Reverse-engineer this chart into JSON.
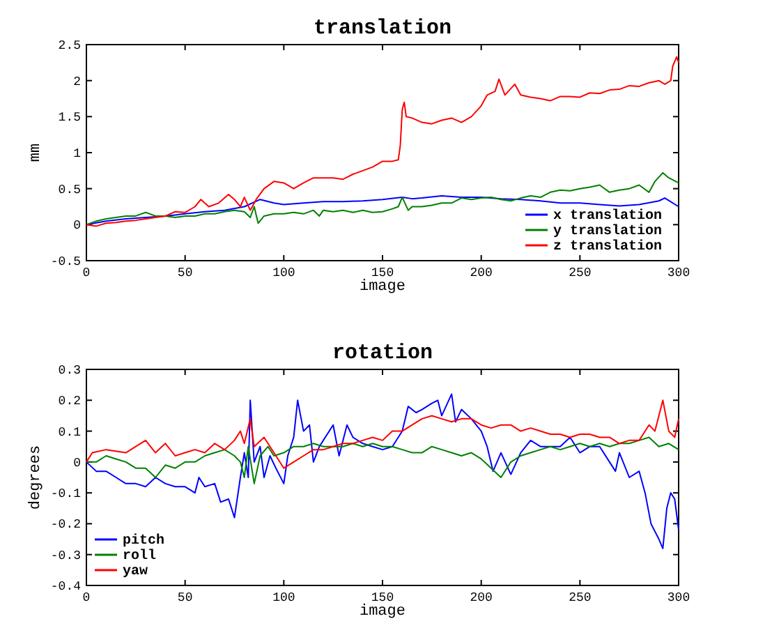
{
  "chart_data": [
    {
      "type": "line",
      "title": "translation",
      "xlabel": "image",
      "ylabel": "mm",
      "xlim": [
        0,
        300
      ],
      "xticks": [
        0,
        50,
        100,
        150,
        200,
        250,
        300
      ],
      "ylim": [
        -0.5,
        2.5
      ],
      "yticks": [
        -0.5,
        0,
        0.5,
        1,
        1.5,
        2,
        2.5
      ],
      "grid": false,
      "legend": "bottom right",
      "series": [
        {
          "name": "x translation",
          "color": "#0000ff",
          "x": [
            0,
            10,
            20,
            30,
            40,
            50,
            60,
            70,
            80,
            88,
            95,
            100,
            110,
            120,
            130,
            140,
            150,
            160,
            165,
            170,
            180,
            190,
            200,
            210,
            220,
            230,
            240,
            250,
            260,
            270,
            280,
            290,
            293,
            300
          ],
          "values": [
            0,
            0.05,
            0.08,
            0.1,
            0.12,
            0.15,
            0.18,
            0.2,
            0.25,
            0.35,
            0.3,
            0.28,
            0.3,
            0.32,
            0.32,
            0.33,
            0.35,
            0.38,
            0.36,
            0.37,
            0.4,
            0.38,
            0.38,
            0.36,
            0.35,
            0.33,
            0.3,
            0.3,
            0.28,
            0.26,
            0.28,
            0.33,
            0.37,
            0.25
          ]
        },
        {
          "name": "y translation",
          "color": "#008000",
          "x": [
            0,
            5,
            10,
            15,
            20,
            25,
            30,
            35,
            40,
            45,
            50,
            55,
            60,
            65,
            70,
            75,
            80,
            83,
            85,
            87,
            90,
            95,
            100,
            105,
            110,
            115,
            118,
            120,
            125,
            130,
            135,
            140,
            145,
            150,
            155,
            158,
            160,
            163,
            165,
            170,
            175,
            180,
            185,
            190,
            195,
            200,
            205,
            210,
            215,
            220,
            225,
            230,
            235,
            240,
            245,
            250,
            255,
            260,
            265,
            270,
            275,
            280,
            285,
            288,
            292,
            295,
            300
          ],
          "values": [
            0,
            0.05,
            0.08,
            0.1,
            0.12,
            0.12,
            0.17,
            0.12,
            0.12,
            0.1,
            0.12,
            0.12,
            0.15,
            0.15,
            0.18,
            0.2,
            0.18,
            0.1,
            0.25,
            0.02,
            0.12,
            0.15,
            0.15,
            0.17,
            0.15,
            0.2,
            0.12,
            0.2,
            0.18,
            0.2,
            0.17,
            0.2,
            0.17,
            0.18,
            0.22,
            0.25,
            0.38,
            0.2,
            0.25,
            0.25,
            0.27,
            0.3,
            0.3,
            0.37,
            0.35,
            0.37,
            0.38,
            0.35,
            0.33,
            0.37,
            0.4,
            0.38,
            0.45,
            0.48,
            0.47,
            0.5,
            0.52,
            0.55,
            0.45,
            0.48,
            0.5,
            0.55,
            0.45,
            0.6,
            0.72,
            0.65,
            0.58
          ]
        },
        {
          "name": "z translation",
          "color": "#ff0000",
          "x": [
            0,
            5,
            10,
            15,
            20,
            25,
            30,
            35,
            40,
            45,
            50,
            55,
            58,
            62,
            67,
            72,
            75,
            78,
            80,
            83,
            86,
            90,
            95,
            100,
            105,
            110,
            115,
            120,
            125,
            130,
            135,
            140,
            145,
            150,
            155,
            158,
            159,
            160,
            161,
            162,
            165,
            170,
            175,
            180,
            185,
            190,
            195,
            200,
            203,
            207,
            209,
            212,
            217,
            220,
            225,
            230,
            235,
            240,
            245,
            250,
            255,
            260,
            265,
            270,
            275,
            280,
            285,
            290,
            293,
            296,
            297,
            299,
            300
          ],
          "values": [
            0,
            -0.02,
            0.02,
            0.03,
            0.05,
            0.06,
            0.08,
            0.1,
            0.12,
            0.18,
            0.17,
            0.25,
            0.35,
            0.25,
            0.3,
            0.42,
            0.35,
            0.25,
            0.38,
            0.2,
            0.35,
            0.5,
            0.6,
            0.58,
            0.5,
            0.58,
            0.65,
            0.65,
            0.65,
            0.63,
            0.7,
            0.75,
            0.8,
            0.88,
            0.88,
            0.9,
            1.1,
            1.6,
            1.7,
            1.5,
            1.48,
            1.42,
            1.4,
            1.45,
            1.48,
            1.42,
            1.5,
            1.65,
            1.8,
            1.85,
            2.02,
            1.8,
            1.95,
            1.8,
            1.77,
            1.75,
            1.72,
            1.78,
            1.78,
            1.77,
            1.83,
            1.82,
            1.87,
            1.88,
            1.93,
            1.92,
            1.97,
            2,
            1.95,
            2,
            2.2,
            2.33,
            2.25
          ]
        }
      ]
    },
    {
      "type": "line",
      "title": "rotation",
      "xlabel": "image",
      "ylabel": "degrees",
      "xlim": [
        0,
        300
      ],
      "xticks": [
        0,
        50,
        100,
        150,
        200,
        250,
        300
      ],
      "ylim": [
        -0.4,
        0.3
      ],
      "yticks": [
        -0.4,
        -0.3,
        -0.2,
        -0.1,
        0,
        0.1,
        0.2,
        0.3
      ],
      "grid": false,
      "legend": "bottom left",
      "series": [
        {
          "name": "pitch",
          "color": "#0000ff",
          "x": [
            0,
            5,
            10,
            15,
            20,
            25,
            30,
            35,
            40,
            45,
            50,
            55,
            57,
            60,
            65,
            68,
            72,
            75,
            78,
            80,
            82,
            83,
            85,
            88,
            90,
            93,
            96,
            100,
            102,
            105,
            107,
            110,
            113,
            115,
            118,
            120,
            125,
            128,
            132,
            135,
            140,
            145,
            150,
            155,
            160,
            163,
            167,
            170,
            175,
            178,
            180,
            185,
            187,
            190,
            195,
            200,
            203,
            206,
            210,
            215,
            220,
            225,
            230,
            235,
            240,
            245,
            250,
            255,
            260,
            265,
            268,
            270,
            275,
            280,
            283,
            286,
            290,
            292,
            294,
            296,
            298,
            300
          ],
          "values": [
            0,
            -0.03,
            -0.03,
            -0.05,
            -0.07,
            -0.07,
            -0.08,
            -0.05,
            -0.07,
            -0.08,
            -0.08,
            -0.1,
            -0.05,
            -0.08,
            -0.07,
            -0.13,
            -0.12,
            -0.18,
            -0.05,
            0.03,
            -0.05,
            0.2,
            0,
            0.05,
            -0.05,
            0.02,
            -0.02,
            -0.07,
            0.02,
            0.08,
            0.2,
            0.1,
            0.12,
            0,
            0.05,
            0.07,
            0.12,
            0.02,
            0.12,
            0.08,
            0.06,
            0.05,
            0.04,
            0.05,
            0.1,
            0.18,
            0.16,
            0.17,
            0.19,
            0.2,
            0.15,
            0.22,
            0.13,
            0.17,
            0.14,
            0.1,
            0.05,
            -0.03,
            0.03,
            -0.04,
            0.03,
            0.07,
            0.05,
            0.05,
            0.05,
            0.08,
            0.03,
            0.05,
            0.05,
            0,
            -0.03,
            0.03,
            -0.05,
            -0.03,
            -0.1,
            -0.2,
            -0.25,
            -0.28,
            -0.15,
            -0.1,
            -0.12,
            -0.22
          ]
        },
        {
          "name": "roll",
          "color": "#008000",
          "x": [
            0,
            5,
            10,
            15,
            20,
            25,
            30,
            35,
            40,
            45,
            50,
            55,
            60,
            65,
            70,
            75,
            78,
            80,
            82,
            85,
            88,
            92,
            95,
            100,
            105,
            110,
            115,
            120,
            125,
            130,
            135,
            140,
            145,
            150,
            155,
            160,
            165,
            170,
            175,
            180,
            185,
            190,
            195,
            200,
            205,
            210,
            215,
            220,
            225,
            230,
            235,
            240,
            245,
            250,
            255,
            260,
            265,
            270,
            275,
            280,
            285,
            290,
            295,
            300
          ],
          "values": [
            0,
            0,
            0.02,
            0.01,
            0,
            -0.02,
            -0.02,
            -0.05,
            -0.01,
            -0.02,
            0,
            0,
            0.02,
            0.03,
            0.04,
            0.02,
            0,
            -0.05,
            0.05,
            -0.07,
            0.02,
            0.05,
            0.02,
            0.03,
            0.05,
            0.05,
            0.06,
            0.05,
            0.05,
            0.05,
            0.06,
            0.05,
            0.06,
            0.05,
            0.05,
            0.04,
            0.03,
            0.03,
            0.05,
            0.04,
            0.03,
            0.02,
            0.03,
            0.01,
            -0.02,
            -0.05,
            0,
            0.02,
            0.03,
            0.04,
            0.05,
            0.04,
            0.05,
            0.06,
            0.05,
            0.06,
            0.05,
            0.06,
            0.06,
            0.07,
            0.08,
            0.05,
            0.06,
            0.04
          ]
        },
        {
          "name": "yaw",
          "color": "#ff0000",
          "x": [
            0,
            3,
            10,
            20,
            25,
            30,
            35,
            40,
            45,
            50,
            55,
            60,
            65,
            70,
            75,
            78,
            80,
            83,
            85,
            90,
            95,
            100,
            105,
            110,
            115,
            120,
            125,
            130,
            135,
            140,
            145,
            150,
            155,
            160,
            165,
            170,
            175,
            180,
            185,
            190,
            195,
            200,
            205,
            210,
            215,
            220,
            225,
            230,
            235,
            240,
            245,
            250,
            255,
            260,
            265,
            270,
            275,
            280,
            285,
            288,
            292,
            295,
            298,
            300
          ],
          "values": [
            0,
            0.03,
            0.04,
            0.03,
            0.05,
            0.07,
            0.03,
            0.06,
            0.02,
            0.03,
            0.04,
            0.03,
            0.06,
            0.04,
            0.07,
            0.1,
            0.06,
            0.14,
            0.05,
            0.08,
            0.03,
            -0.02,
            0,
            0.02,
            0.04,
            0.04,
            0.05,
            0.06,
            0.06,
            0.07,
            0.08,
            0.07,
            0.1,
            0.1,
            0.12,
            0.14,
            0.15,
            0.14,
            0.13,
            0.14,
            0.14,
            0.12,
            0.11,
            0.12,
            0.12,
            0.1,
            0.11,
            0.1,
            0.09,
            0.09,
            0.08,
            0.09,
            0.09,
            0.08,
            0.08,
            0.06,
            0.07,
            0.07,
            0.12,
            0.1,
            0.2,
            0.1,
            0.08,
            0.14
          ]
        }
      ]
    }
  ]
}
